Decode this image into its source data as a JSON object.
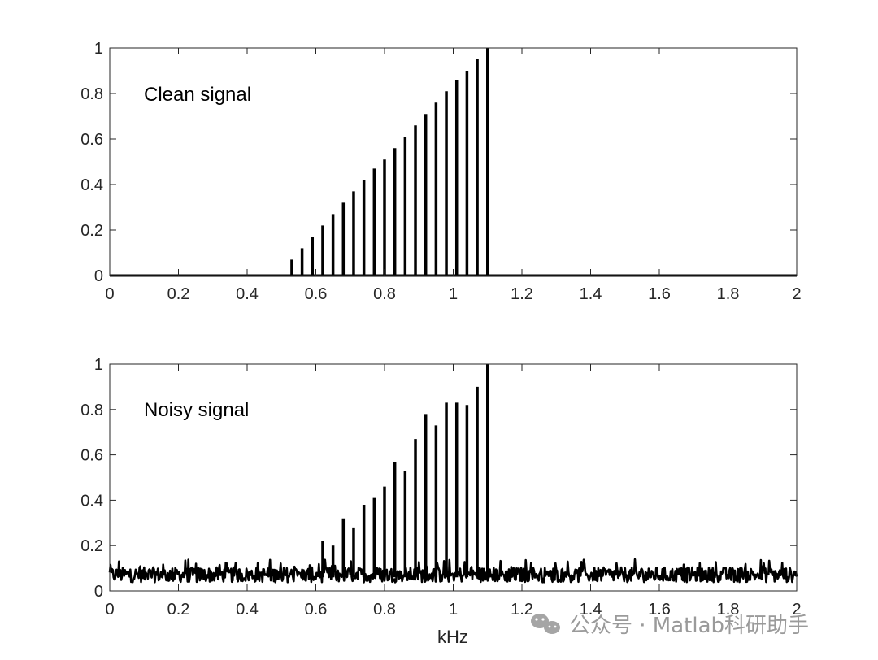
{
  "colors": {
    "line": "#000000",
    "axis": "#262626",
    "background": "#ffffff",
    "watermark": "#9a9a9a"
  },
  "watermark": {
    "text": "公众号 · Matlab科研助手",
    "icon": "wechat-icon"
  },
  "chart_data": [
    {
      "type": "line",
      "annotation": "Clean signal",
      "xlabel": "",
      "ylabel": "",
      "xlim": [
        0,
        2
      ],
      "ylim": [
        0,
        1
      ],
      "xticks": [
        "0",
        "0.2",
        "0.4",
        "0.6",
        "0.8",
        "1",
        "1.2",
        "1.4",
        "1.6",
        "1.8",
        "2"
      ],
      "yticks": [
        "0",
        "0.2",
        "0.4",
        "0.6",
        "0.8",
        "1"
      ],
      "grid": false,
      "baseline": 0,
      "spikes": {
        "x": [
          0.53,
          0.56,
          0.59,
          0.62,
          0.65,
          0.68,
          0.71,
          0.74,
          0.77,
          0.8,
          0.83,
          0.86,
          0.89,
          0.92,
          0.95,
          0.98,
          1.01,
          1.04,
          1.07,
          1.1
        ],
        "y": [
          0.07,
          0.12,
          0.17,
          0.22,
          0.27,
          0.32,
          0.37,
          0.42,
          0.47,
          0.51,
          0.56,
          0.61,
          0.66,
          0.71,
          0.76,
          0.81,
          0.86,
          0.9,
          0.95,
          1.0
        ]
      }
    },
    {
      "type": "line",
      "annotation": "Noisy signal",
      "xlabel": "kHz",
      "ylabel": "",
      "xlim": [
        0,
        2
      ],
      "ylim": [
        0,
        1
      ],
      "xticks": [
        "0",
        "0.2",
        "0.4",
        "0.6",
        "0.8",
        "1",
        "1.2",
        "1.4",
        "1.6",
        "1.8",
        "2"
      ],
      "yticks": [
        "0",
        "0.2",
        "0.4",
        "0.6",
        "0.8",
        "1"
      ],
      "grid": false,
      "noise_floor": {
        "mean": 0.06,
        "range": [
          0.02,
          0.14
        ]
      },
      "spikes": {
        "x": [
          0.62,
          0.65,
          0.68,
          0.71,
          0.74,
          0.77,
          0.8,
          0.83,
          0.86,
          0.89,
          0.92,
          0.95,
          0.98,
          1.01,
          1.04,
          1.07,
          1.1
        ],
        "y": [
          0.22,
          0.2,
          0.32,
          0.28,
          0.38,
          0.41,
          0.46,
          0.57,
          0.53,
          0.67,
          0.78,
          0.73,
          0.83,
          0.83,
          0.82,
          0.9,
          1.0
        ]
      }
    }
  ]
}
